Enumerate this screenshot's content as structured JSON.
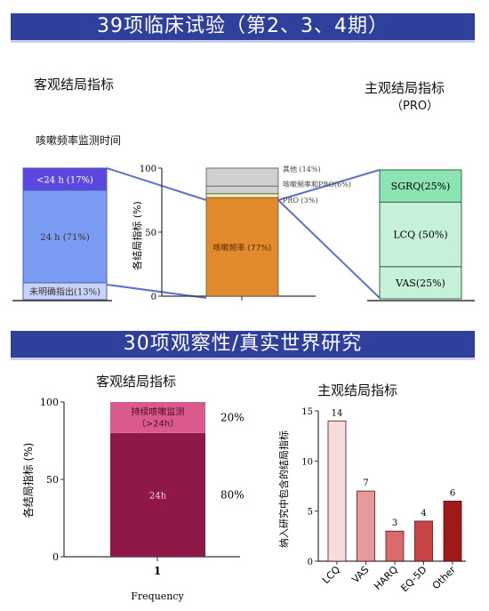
{
  "section1": {
    "title": "39项临床试验（第2、3、4期）",
    "objective_label": "客观结局指标",
    "subjective_label": "主观结局指标",
    "subjective_sub": "（PRO）",
    "cough_label": "咳嗽频率监测时间"
  },
  "section2": {
    "title": "30项观察性/真实世界研究",
    "objective_label": "客观结局指标",
    "subjective_label": "主观结局指标"
  },
  "colors": {
    "banner": "#2f3f9c",
    "blue_dark": "#5b47e0",
    "blue_mid": "#7b9cf3",
    "blue_light": "#c9d3f7",
    "orange": "#e28a2c",
    "yellow": "#f9f0a0",
    "gray": "#cfcfcf",
    "green": "#c6f1d8",
    "green_dark": "#8ce4b3",
    "maroon": "#8f1848",
    "pink": "#d95a8c"
  },
  "chart_data": [
    {
      "type": "bar",
      "stacked": true,
      "segments": [
        {
          "label": "未明确指出(13%)",
          "value": 13
        },
        {
          "label": "24 h (71%)",
          "value": 71
        },
        {
          "label": "<24 h (17%)",
          "value": 17
        }
      ]
    },
    {
      "type": "bar",
      "stacked": true,
      "ylabel": "各结局指标 (%)",
      "ylim": [
        0,
        100
      ],
      "yticks": [
        0,
        50,
        100
      ],
      "segments": [
        {
          "label": "咳嗽频率 (77%)",
          "value": 77
        },
        {
          "label": "PRO (3%)",
          "value": 3
        },
        {
          "label": "咳嗽频率和PRO(6%)",
          "value": 6
        },
        {
          "label": "其他 (14%)",
          "value": 14
        }
      ]
    },
    {
      "type": "bar",
      "stacked": true,
      "segments": [
        {
          "label": "VAS(25%)",
          "value": 25
        },
        {
          "label": "LCQ (50%)",
          "value": 50
        },
        {
          "label": "SGRQ(25%)",
          "value": 25
        }
      ]
    },
    {
      "type": "bar",
      "stacked": true,
      "xlabel": "Frequency",
      "ylabel": "各结局指标 (%)",
      "ylim": [
        0,
        100
      ],
      "yticks": [
        0,
        50,
        100
      ],
      "categories": [
        "1"
      ],
      "segments": [
        {
          "label": "24h",
          "value": 80,
          "side_label": "80%"
        },
        {
          "label": "持续咳嗽监测（>24h）",
          "value": 20,
          "side_label": "20%"
        }
      ]
    },
    {
      "type": "bar",
      "ylabel": "纳入研究中包含的结局指标",
      "ylim": [
        0,
        15
      ],
      "yticks": [
        0,
        5,
        10,
        15
      ],
      "categories": [
        "LCQ",
        "VAS",
        "HARQ",
        "EQ-5D",
        "Other"
      ],
      "values": [
        14,
        7,
        3,
        4,
        6
      ]
    }
  ]
}
